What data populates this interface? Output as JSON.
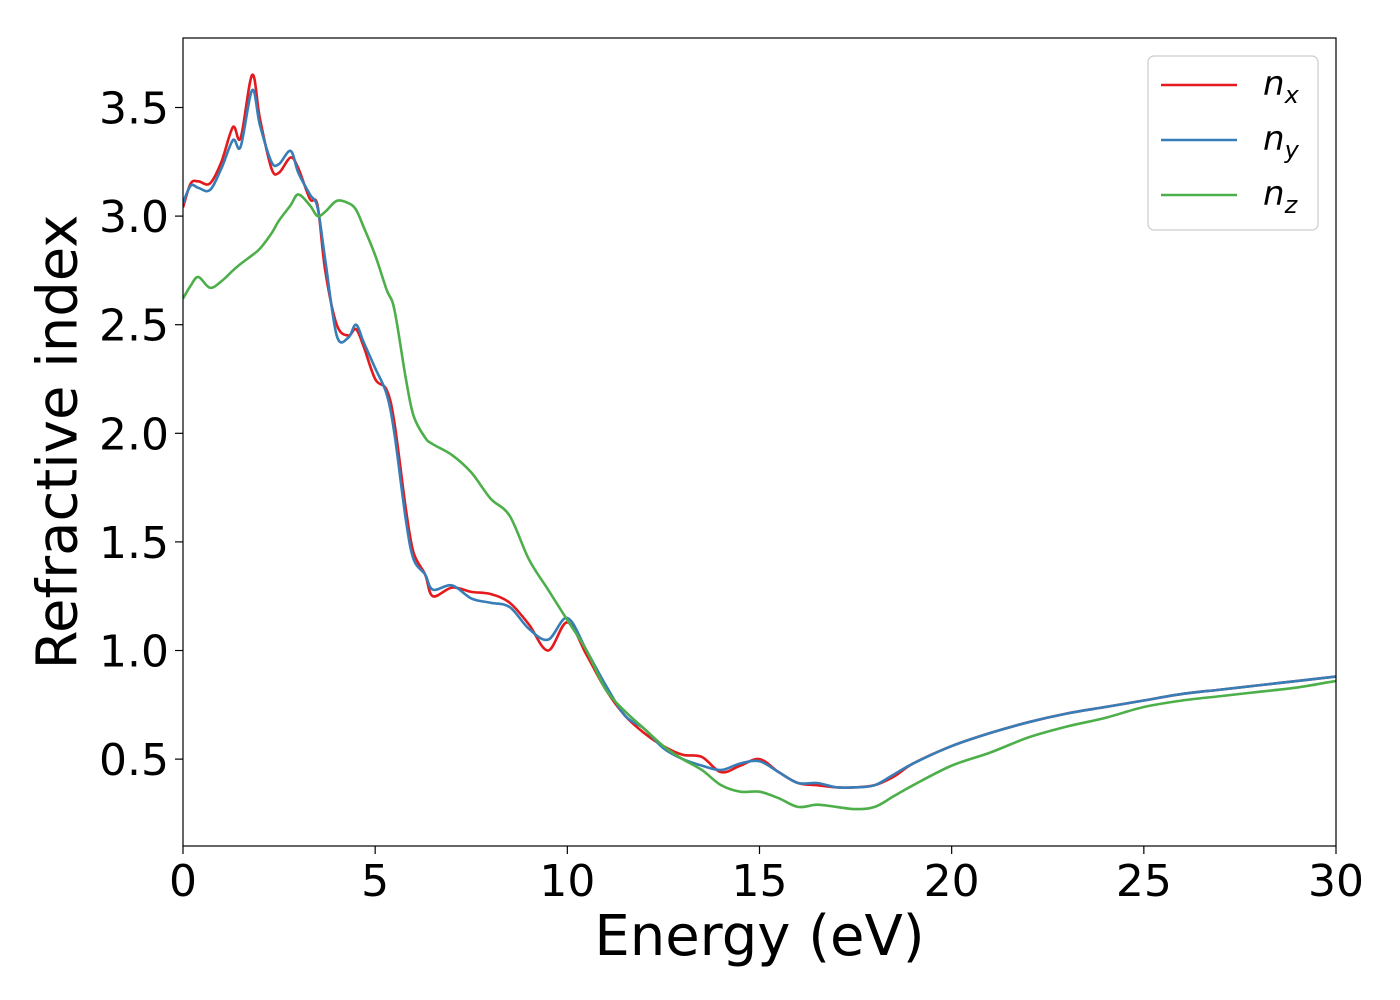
{
  "chart_data": {
    "type": "line",
    "xlabel": "Energy (eV)",
    "ylabel": "Refractive index",
    "xlim": [
      0,
      30
    ],
    "ylim": [
      0.1,
      3.82
    ],
    "xticks": [
      0,
      5,
      10,
      15,
      20,
      25,
      30
    ],
    "xtick_labels": [
      "0",
      "5",
      "10",
      "15",
      "20",
      "25",
      "30"
    ],
    "yticks": [
      0.5,
      1.0,
      1.5,
      2.0,
      2.5,
      3.0,
      3.5
    ],
    "ytick_labels": [
      "0.5",
      "1.0",
      "1.5",
      "2.0",
      "2.5",
      "3.0",
      "3.5"
    ],
    "grid": false,
    "legend_position": "top-right",
    "series": [
      {
        "name": "n",
        "subscript": "x",
        "color": "#e41a1c",
        "x": [
          0,
          0.2,
          0.4,
          0.7,
          1.0,
          1.3,
          1.5,
          1.8,
          2.0,
          2.3,
          2.5,
          2.8,
          3.0,
          3.3,
          3.5,
          3.7,
          4.0,
          4.3,
          4.5,
          4.7,
          5.0,
          5.3,
          5.5,
          5.8,
          6.0,
          6.3,
          6.5,
          7.0,
          7.5,
          8.0,
          8.5,
          9.0,
          9.5,
          10.0,
          10.5,
          11.0,
          11.5,
          12.0,
          12.5,
          13.0,
          13.5,
          14.0,
          14.5,
          15.0,
          15.5,
          16.0,
          16.5,
          17.0,
          17.5,
          18.0,
          18.5,
          19.0,
          20.0,
          21.0,
          22.0,
          23.0,
          24.0,
          25.0,
          26.0,
          27.0,
          28.0,
          29.0,
          30.0
        ],
        "y": [
          3.04,
          3.15,
          3.16,
          3.15,
          3.25,
          3.41,
          3.36,
          3.65,
          3.45,
          3.22,
          3.2,
          3.27,
          3.22,
          3.08,
          3.05,
          2.75,
          2.5,
          2.45,
          2.48,
          2.4,
          2.25,
          2.2,
          2.05,
          1.65,
          1.45,
          1.35,
          1.25,
          1.29,
          1.27,
          1.26,
          1.22,
          1.12,
          1.0,
          1.13,
          0.98,
          0.82,
          0.7,
          0.62,
          0.56,
          0.52,
          0.51,
          0.44,
          0.47,
          0.5,
          0.44,
          0.39,
          0.38,
          0.37,
          0.37,
          0.38,
          0.42,
          0.48,
          0.56,
          0.62,
          0.67,
          0.71,
          0.74,
          0.77,
          0.8,
          0.82,
          0.84,
          0.86,
          0.88
        ]
      },
      {
        "name": "n",
        "subscript": "y",
        "color": "#377eb8",
        "x": [
          0,
          0.2,
          0.4,
          0.7,
          1.0,
          1.3,
          1.5,
          1.8,
          2.0,
          2.3,
          2.5,
          2.8,
          3.0,
          3.3,
          3.5,
          3.7,
          4.0,
          4.3,
          4.5,
          4.7,
          5.0,
          5.3,
          5.5,
          5.8,
          6.0,
          6.3,
          6.5,
          7.0,
          7.5,
          8.0,
          8.5,
          9.0,
          9.5,
          10.0,
          10.5,
          11.0,
          11.5,
          12.0,
          12.5,
          13.0,
          13.5,
          14.0,
          14.5,
          15.0,
          15.5,
          16.0,
          16.5,
          17.0,
          17.5,
          18.0,
          18.5,
          19.0,
          20.0,
          21.0,
          22.0,
          23.0,
          24.0,
          25.0,
          26.0,
          27.0,
          28.0,
          29.0,
          30.0
        ],
        "y": [
          3.06,
          3.14,
          3.13,
          3.12,
          3.22,
          3.35,
          3.32,
          3.58,
          3.42,
          3.25,
          3.24,
          3.3,
          3.2,
          3.1,
          3.04,
          2.8,
          2.45,
          2.44,
          2.5,
          2.42,
          2.3,
          2.18,
          2.0,
          1.6,
          1.42,
          1.35,
          1.28,
          1.3,
          1.24,
          1.22,
          1.2,
          1.1,
          1.05,
          1.15,
          1.0,
          0.84,
          0.7,
          0.64,
          0.55,
          0.5,
          0.47,
          0.45,
          0.48,
          0.49,
          0.44,
          0.39,
          0.39,
          0.37,
          0.37,
          0.38,
          0.43,
          0.48,
          0.56,
          0.62,
          0.67,
          0.71,
          0.74,
          0.77,
          0.8,
          0.82,
          0.84,
          0.86,
          0.88
        ]
      },
      {
        "name": "n",
        "subscript": "z",
        "color": "#4daf4a",
        "x": [
          0,
          0.2,
          0.4,
          0.7,
          1.0,
          1.3,
          1.5,
          1.8,
          2.0,
          2.3,
          2.5,
          2.8,
          3.0,
          3.3,
          3.5,
          3.7,
          4.0,
          4.3,
          4.5,
          4.7,
          5.0,
          5.3,
          5.5,
          5.8,
          6.0,
          6.3,
          6.5,
          7.0,
          7.5,
          8.0,
          8.5,
          9.0,
          9.5,
          10.0,
          10.5,
          11.0,
          11.5,
          12.0,
          12.5,
          13.0,
          13.5,
          14.0,
          14.5,
          15.0,
          15.5,
          16.0,
          16.5,
          17.0,
          17.5,
          18.0,
          18.5,
          19.0,
          20.0,
          21.0,
          22.0,
          23.0,
          24.0,
          25.0,
          26.0,
          27.0,
          28.0,
          29.0,
          30.0
        ],
        "y": [
          2.62,
          2.68,
          2.72,
          2.67,
          2.7,
          2.75,
          2.78,
          2.82,
          2.85,
          2.92,
          2.98,
          3.05,
          3.1,
          3.05,
          3.0,
          3.02,
          3.07,
          3.06,
          3.03,
          2.95,
          2.82,
          2.66,
          2.57,
          2.25,
          2.08,
          1.98,
          1.95,
          1.9,
          1.82,
          1.7,
          1.62,
          1.42,
          1.28,
          1.14,
          1.0,
          0.82,
          0.72,
          0.64,
          0.56,
          0.5,
          0.45,
          0.38,
          0.35,
          0.35,
          0.32,
          0.28,
          0.29,
          0.28,
          0.27,
          0.28,
          0.33,
          0.38,
          0.47,
          0.53,
          0.6,
          0.65,
          0.69,
          0.74,
          0.77,
          0.79,
          0.81,
          0.83,
          0.86
        ]
      }
    ]
  }
}
